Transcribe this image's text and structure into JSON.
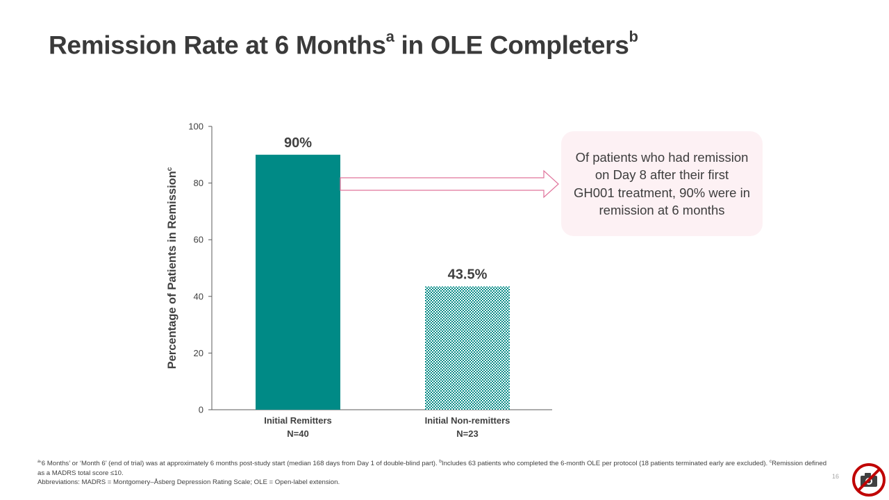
{
  "title": {
    "main": "Remission Rate at 6 Months",
    "sup_a": "a",
    "middle": " in OLE Completers",
    "sup_b": "b"
  },
  "chart_data": {
    "type": "bar",
    "categories": [
      "Initial Remitters",
      "Initial Non-remitters"
    ],
    "category_subtitles": [
      "N=40",
      "N=23"
    ],
    "values": [
      90,
      43.5
    ],
    "value_labels": [
      "90%",
      "43.5%"
    ],
    "bar_styles": [
      "solid",
      "hatched"
    ],
    "ylabel": "Percentage of Patients in Remission",
    "ylabel_sup": "c",
    "ylim": [
      0,
      100
    ],
    "yticks": [
      0,
      20,
      40,
      60,
      80,
      100
    ],
    "xlabel": "",
    "grid": false
  },
  "callout": {
    "text": "Of patients who had remission on Day 8 after their first GH001 treatment, 90% were in remission at 6 months"
  },
  "footnote": {
    "sup_a": "a",
    "line1": "‘6 Months’ or ‘Month 6’ (end of trial) was at approximately 6 months post-study start (median 168 days from Day 1 of double-blind part). ",
    "sup_b": "b",
    "line1b": "Includes 63 patients who completed the 6-month OLE per protocol (18 patients terminated early are excluded). ",
    "sup_c": "c",
    "line1c": "Remission defined as a MADRS total score ≤10.",
    "line2": "Abbreviations: MADRS = Montgomery–Åsberg Depression Rating Scale; OLE = Open-label extension."
  },
  "page_number": "16",
  "colors": {
    "bar_primary": "#008a86",
    "arrow": "#e0739b",
    "callout_bg": "#fdf1f4",
    "title": "#3a3a3a"
  },
  "icons": {
    "no_camera": "no-camera-icon"
  }
}
